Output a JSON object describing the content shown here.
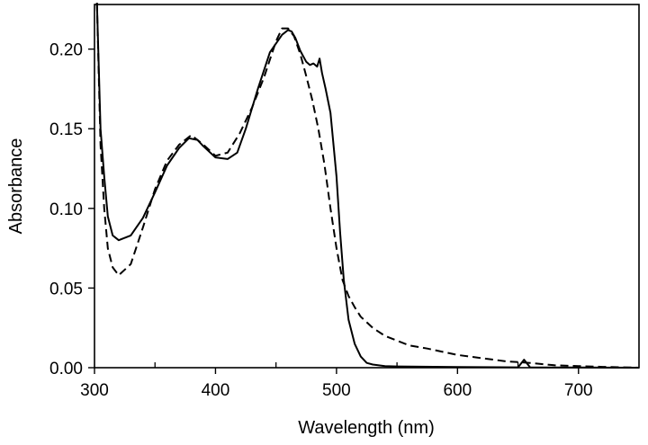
{
  "chart_data": {
    "type": "line",
    "title": "",
    "xlabel": "Wavelength (nm)",
    "ylabel": "Absorbance",
    "xlim": [
      300,
      750
    ],
    "ylim": [
      0,
      0.228
    ],
    "x_ticks": [
      300,
      400,
      500,
      600,
      700
    ],
    "x_tick_labels": [
      "300",
      "400",
      "500",
      "600",
      "700"
    ],
    "x_minor_ticks": [
      350,
      450,
      550,
      650
    ],
    "y_ticks": [
      0,
      0.05,
      0.1,
      0.15,
      0.2
    ],
    "y_tick_labels": [
      "0.00",
      "0.05",
      "0.10",
      "0.15",
      "0.20"
    ],
    "grid": false,
    "series": [
      {
        "name": "solid",
        "style": "solid",
        "color": "#000000",
        "x": [
          302,
          305,
          308,
          311,
          315,
          320,
          330,
          340,
          350,
          360,
          370,
          378,
          385,
          390,
          400,
          410,
          418,
          425,
          435,
          445,
          455,
          460,
          463,
          466,
          470,
          475,
          478,
          481,
          484,
          486,
          488,
          491,
          495,
          500,
          503,
          506,
          510,
          515,
          520,
          525,
          530,
          540,
          550,
          600,
          650,
          655,
          660,
          700,
          750
        ],
        "y": [
          0.229,
          0.15,
          0.12,
          0.095,
          0.083,
          0.08,
          0.083,
          0.094,
          0.11,
          0.127,
          0.138,
          0.144,
          0.143,
          0.139,
          0.132,
          0.131,
          0.135,
          0.15,
          0.175,
          0.198,
          0.209,
          0.212,
          0.211,
          0.207,
          0.199,
          0.192,
          0.19,
          0.191,
          0.189,
          0.194,
          0.185,
          0.175,
          0.16,
          0.12,
          0.085,
          0.055,
          0.03,
          0.015,
          0.007,
          0.003,
          0.002,
          0.001,
          0.0008,
          0.0004,
          0.0002,
          0.005,
          0.0002,
          0.0001,
          0.0
        ]
      },
      {
        "name": "dashed",
        "style": "dashed",
        "color": "#000000",
        "x": [
          302,
          305,
          308,
          311,
          315,
          320,
          330,
          340,
          350,
          360,
          370,
          380,
          390,
          400,
          410,
          420,
          430,
          440,
          450,
          455,
          460,
          465,
          470,
          475,
          480,
          485,
          490,
          495,
          500,
          505,
          510,
          515,
          520,
          530,
          540,
          550,
          560,
          575,
          600,
          620,
          640,
          660,
          680,
          700,
          720,
          750
        ],
        "y": [
          0.229,
          0.14,
          0.1,
          0.075,
          0.063,
          0.058,
          0.065,
          0.088,
          0.112,
          0.13,
          0.14,
          0.146,
          0.14,
          0.133,
          0.135,
          0.147,
          0.163,
          0.182,
          0.205,
          0.213,
          0.213,
          0.208,
          0.197,
          0.183,
          0.168,
          0.15,
          0.128,
          0.1,
          0.075,
          0.055,
          0.045,
          0.038,
          0.032,
          0.025,
          0.02,
          0.017,
          0.014,
          0.012,
          0.008,
          0.006,
          0.004,
          0.003,
          0.0015,
          0.001,
          0.0005,
          0.0
        ]
      }
    ]
  }
}
